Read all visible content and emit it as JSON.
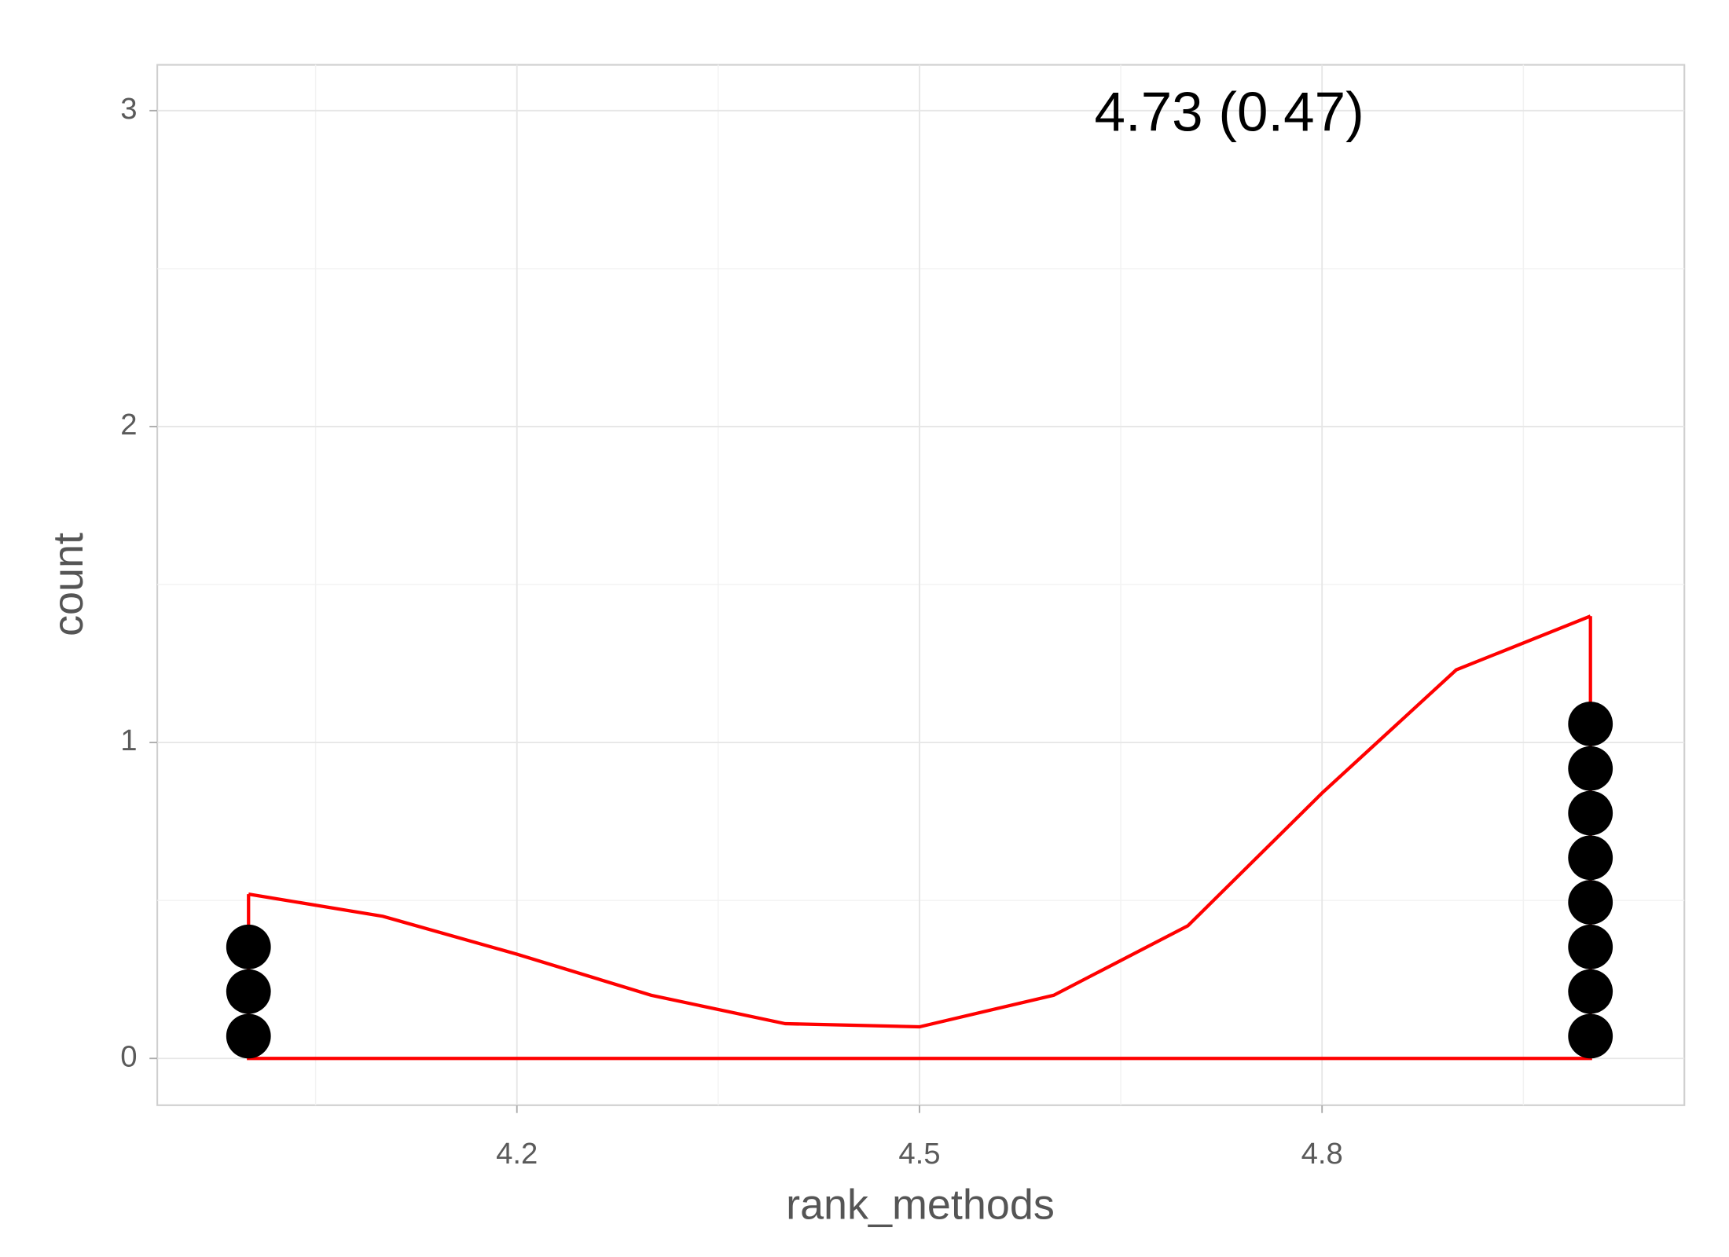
{
  "chart_data": {
    "type": "dotplot",
    "x_label": "rank_methods",
    "y_label": "count",
    "annotation": "4.73 (0.47)",
    "values": [
      4,
      4,
      4,
      5,
      5,
      5,
      5,
      5,
      5,
      5,
      5
    ],
    "color": "#000000",
    "density": {
      "color": "#ff0000",
      "x": [
        4.0,
        4.1,
        4.2,
        4.3,
        4.4,
        4.5,
        4.6,
        4.7,
        4.8,
        4.9,
        5.0
      ],
      "y": [
        0.52,
        0.45,
        0.33,
        0.2,
        0.11,
        0.1,
        0.2,
        0.42,
        0.84,
        1.23,
        1.4
      ]
    },
    "xlim": [
      3.932,
      5.07
    ],
    "xticks": [
      4.2,
      4.5,
      4.8
    ],
    "ylim": [
      -0.148,
      3.145
    ],
    "yticks": [
      0,
      1,
      2,
      3
    ],
    "grid": true
  }
}
